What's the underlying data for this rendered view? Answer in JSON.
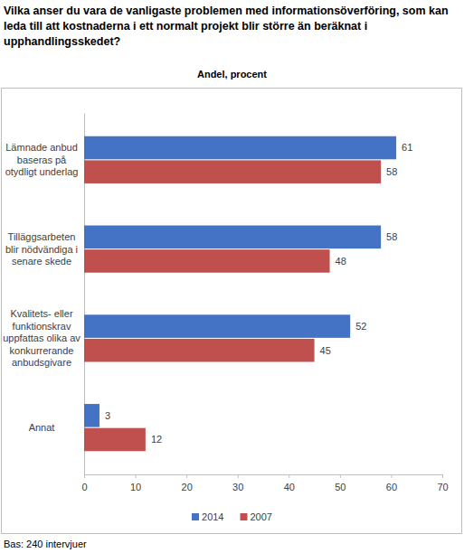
{
  "chart_data": {
    "type": "bar",
    "orientation": "horizontal",
    "title": "Vilka anser du vara de vanligaste problemen med informationsöverföring, som kan leda till att kostnaderna i ett normalt projekt blir större än beräknat i upphandlingsskedet?",
    "subtitle": "Andel, procent",
    "footnote": "Bas: 240 intervjuer",
    "categories": [
      "Lämnade anbud baseras på otydligt underlag",
      "Tilläggsarbeten blir nödvändiga i senare skede",
      "Kvalitets- eller funktionskrav uppfattas olika av konkurrerande anbudsgivare",
      "Annat"
    ],
    "series": [
      {
        "name": "2014",
        "color": "#4472c4",
        "values": [
          61,
          58,
          52,
          3
        ]
      },
      {
        "name": "2007",
        "color": "#c0504d",
        "values": [
          58,
          48,
          45,
          12
        ]
      }
    ],
    "xlim": [
      0,
      70
    ],
    "xticks": [
      0,
      10,
      20,
      30,
      40,
      50,
      60,
      70
    ],
    "grid": false,
    "legend": "bottom",
    "data_labels": true
  }
}
